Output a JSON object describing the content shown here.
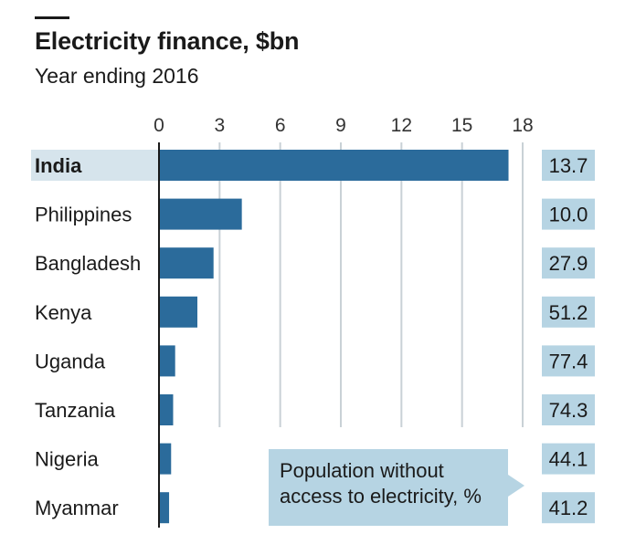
{
  "header": {
    "title": "Electricity finance, $bn",
    "subtitle": "Year ending 2016"
  },
  "annotation": {
    "line1": "Population without",
    "line2": "access to electricity, %"
  },
  "colors": {
    "bar": "#2b6b9b",
    "highlight_row": "#d6e4ec",
    "value_box": "#b6d4e3",
    "gridline": "#c9d1d6",
    "axis": "#1a1a1a"
  },
  "chart_data": {
    "type": "bar",
    "orientation": "horizontal",
    "title": "Electricity finance, $bn",
    "subtitle": "Year ending 2016",
    "categories": [
      "India",
      "Philippines",
      "Bangladesh",
      "Kenya",
      "Uganda",
      "Tanzania",
      "Nigeria",
      "Myanmar"
    ],
    "values": [
      17.3,
      4.1,
      2.7,
      1.9,
      0.8,
      0.7,
      0.6,
      0.5
    ],
    "highlighted_category": "India",
    "xlim": [
      0,
      18
    ],
    "xticks": [
      0,
      3,
      6,
      9,
      12,
      15,
      18
    ],
    "grid": true,
    "secondary_series": {
      "name": "Population without access to electricity, %",
      "values": [
        "13.7",
        "10.0",
        "27.9",
        "51.2",
        "77.4",
        "74.3",
        "44.1",
        "41.2"
      ]
    }
  }
}
